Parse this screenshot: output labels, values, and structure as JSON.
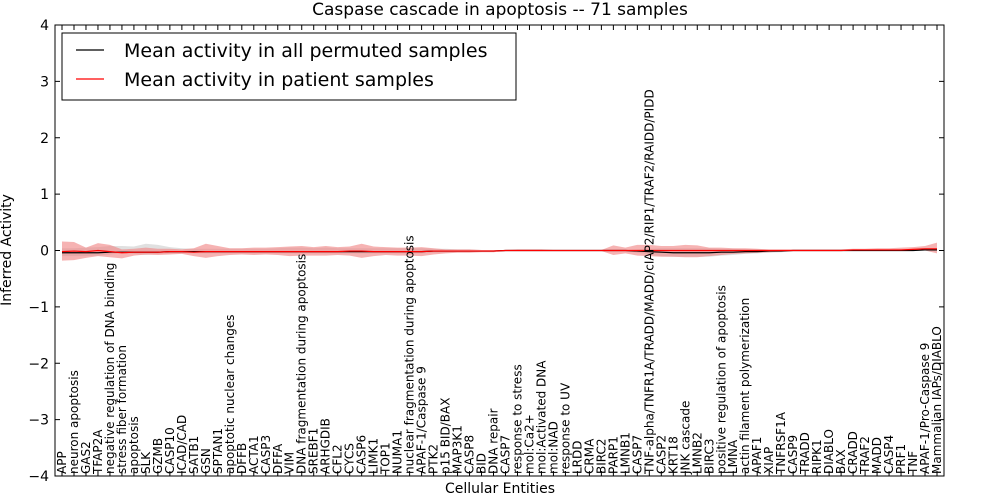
{
  "chart_data": {
    "type": "line",
    "title": "Caspase cascade in apoptosis -- 71 samples",
    "xlabel": "Cellular Entities",
    "ylabel": "Inferred Activity",
    "ylim": [
      -4,
      4
    ],
    "yticks": [
      -4,
      -3,
      -2,
      -1,
      0,
      1,
      2,
      3,
      4
    ],
    "ytick_labels": [
      "−4",
      "−3",
      "−2",
      "−1",
      "0",
      "1",
      "2",
      "3",
      "4"
    ],
    "grid": false,
    "legend_position": "top-left",
    "categories": [
      "APP",
      "neuron apoptosis",
      "GAS2",
      "TFAP2A",
      "negative regulation of DNA binding",
      "stress fiber formation",
      "apoptosis",
      "SLK",
      "GZMB",
      "CASP10",
      "ICAD/CAD",
      "SATB1",
      "GSN",
      "SPTAN1",
      "apoptotic nuclear changes",
      "DFFB",
      "ACTA1",
      "CASP3",
      "DFFA",
      "VIM",
      "DNA fragmentation during apoptosis",
      "SREBF1",
      "ARHGDIB",
      "CFL2",
      "CYCS",
      "CASP6",
      "LIMK1",
      "TOP1",
      "NUMA1",
      "nuclear fragmentation during apoptosis",
      "APAF-1/Caspase 9",
      "PTK2",
      "p15 BID/BAX",
      "MAP3K1",
      "CASP8",
      "BID",
      "DNA repair",
      "CASP7",
      "response to stress",
      "mol:Ca2+",
      "mol:Activated DNA",
      "mol:NAD",
      "response to UV",
      "LRDD",
      "CRMA",
      "BIRC2",
      "PARP1",
      "LMNB1",
      "CASP7",
      "TNF-alpha/TNFR1A/TRADD/MADD/cIAP2/RIP1/TRAF2/RAIDD/PIDD",
      "CASP2",
      "KRT18",
      "JNK cascade",
      "LMNB2",
      "BIRC3",
      "positive regulation of apoptosis",
      "LMNA",
      "actin filament polymerization",
      "APAF1",
      "XIAP",
      "TNFRSF1A",
      "CASP9",
      "TRADD",
      "RIPK1",
      "DIABLO",
      "BAX",
      "CRADD",
      "TRAF2",
      "MADD",
      "CASP4",
      "PRF1",
      "TNF",
      "APAF-1/Pro-Caspase 9",
      "Mammalian IAPs/DIABLO"
    ],
    "series": [
      {
        "name": "Mean activity in all permuted samples",
        "color": "#000000",
        "band_color": "#bbbbbb",
        "values": [
          -0.04,
          -0.04,
          -0.04,
          -0.04,
          -0.03,
          -0.03,
          -0.03,
          -0.03,
          -0.03,
          -0.02,
          -0.02,
          -0.02,
          -0.02,
          -0.02,
          -0.02,
          -0.02,
          -0.02,
          -0.02,
          -0.02,
          -0.02,
          -0.02,
          -0.02,
          -0.02,
          -0.02,
          -0.02,
          -0.02,
          -0.02,
          -0.02,
          -0.02,
          -0.02,
          -0.02,
          -0.01,
          -0.01,
          -0.01,
          -0.01,
          -0.01,
          -0.01,
          0.0,
          0.0,
          0.0,
          0.0,
          0.0,
          0.0,
          0.0,
          0.0,
          0.0,
          0.0,
          0.0,
          -0.01,
          -0.02,
          -0.03,
          -0.04,
          -0.04,
          -0.04,
          -0.04,
          -0.03,
          -0.03,
          -0.02,
          -0.02,
          -0.01,
          -0.01,
          0.0,
          0.0,
          0.0,
          0.0,
          0.0,
          0.0,
          0.0,
          0.0,
          0.0,
          0.0,
          0.0,
          0.01,
          0.01
        ],
        "lower": [
          -0.1,
          -0.1,
          -0.1,
          -0.09,
          -0.07,
          -0.05,
          -0.06,
          -0.08,
          -0.06,
          -0.05,
          -0.05,
          -0.05,
          -0.05,
          -0.05,
          -0.05,
          -0.05,
          -0.05,
          -0.05,
          -0.05,
          -0.05,
          -0.05,
          -0.05,
          -0.05,
          -0.05,
          -0.05,
          -0.05,
          -0.05,
          -0.05,
          -0.05,
          -0.05,
          -0.05,
          -0.04,
          -0.04,
          -0.03,
          -0.03,
          -0.02,
          -0.02,
          -0.01,
          -0.01,
          -0.01,
          -0.01,
          -0.01,
          -0.01,
          -0.01,
          -0.01,
          -0.01,
          -0.01,
          -0.01,
          -0.04,
          -0.07,
          -0.1,
          -0.11,
          -0.11,
          -0.11,
          -0.11,
          -0.09,
          -0.08,
          -0.06,
          -0.05,
          -0.04,
          -0.03,
          -0.01,
          -0.01,
          -0.01,
          -0.01,
          -0.01,
          -0.01,
          -0.01,
          -0.01,
          -0.01,
          -0.01,
          -0.01,
          0.0,
          -0.01
        ],
        "upper": [
          0.04,
          0.04,
          0.05,
          0.06,
          0.08,
          0.08,
          0.07,
          0.12,
          0.1,
          0.06,
          0.04,
          0.03,
          0.03,
          0.03,
          0.03,
          0.03,
          0.03,
          0.03,
          0.04,
          0.05,
          0.05,
          0.04,
          0.05,
          0.04,
          0.04,
          0.04,
          0.04,
          0.04,
          0.04,
          0.04,
          0.04,
          0.03,
          0.03,
          0.02,
          0.02,
          0.01,
          0.01,
          0.01,
          0.01,
          0.01,
          0.01,
          0.01,
          0.01,
          0.01,
          0.01,
          0.01,
          0.01,
          0.01,
          0.02,
          0.03,
          0.04,
          0.04,
          0.04,
          0.04,
          0.04,
          0.03,
          0.03,
          0.02,
          0.02,
          0.01,
          0.01,
          0.01,
          0.01,
          0.01,
          0.01,
          0.01,
          0.01,
          0.01,
          0.01,
          0.01,
          0.02,
          0.02,
          0.03,
          0.03
        ]
      },
      {
        "name": "Mean activity in patient samples",
        "color": "#ff0000",
        "band_color": "#f08080",
        "values": [
          -0.02,
          -0.01,
          -0.02,
          0.0,
          -0.02,
          -0.04,
          -0.03,
          -0.03,
          -0.03,
          -0.02,
          -0.02,
          -0.03,
          -0.02,
          -0.02,
          -0.02,
          -0.02,
          -0.02,
          -0.02,
          -0.02,
          -0.02,
          -0.02,
          -0.02,
          -0.02,
          -0.02,
          -0.01,
          -0.01,
          -0.02,
          -0.02,
          -0.02,
          -0.02,
          -0.02,
          -0.01,
          -0.01,
          -0.01,
          -0.01,
          -0.01,
          -0.01,
          0.0,
          0.0,
          0.0,
          0.0,
          0.0,
          0.0,
          0.0,
          0.0,
          0.0,
          0.0,
          0.0,
          0.0,
          0.0,
          0.0,
          0.0,
          0.0,
          0.0,
          0.0,
          0.0,
          0.0,
          0.0,
          0.0,
          0.0,
          0.0,
          0.0,
          0.0,
          0.0,
          0.0,
          0.0,
          0.01,
          0.01,
          0.01,
          0.01,
          0.01,
          0.02,
          0.03,
          0.03
        ],
        "lower": [
          -0.18,
          -0.17,
          -0.13,
          -0.1,
          -0.12,
          -0.14,
          -0.09,
          -0.07,
          -0.08,
          -0.07,
          -0.06,
          -0.1,
          -0.13,
          -0.1,
          -0.08,
          -0.07,
          -0.08,
          -0.07,
          -0.08,
          -0.1,
          -0.09,
          -0.09,
          -0.09,
          -0.08,
          -0.09,
          -0.13,
          -0.1,
          -0.08,
          -0.09,
          -0.09,
          -0.1,
          -0.07,
          -0.05,
          -0.04,
          -0.04,
          -0.03,
          -0.03,
          -0.01,
          0.0,
          0.0,
          0.0,
          -0.01,
          -0.01,
          -0.01,
          -0.01,
          -0.01,
          -0.08,
          -0.05,
          -0.09,
          -0.1,
          -0.11,
          -0.11,
          -0.12,
          -0.12,
          -0.1,
          -0.08,
          -0.06,
          -0.05,
          -0.04,
          -0.03,
          -0.02,
          -0.01,
          -0.01,
          -0.01,
          -0.01,
          -0.01,
          0.0,
          -0.01,
          0.0,
          0.0,
          0.0,
          0.0,
          0.0,
          -0.05
        ],
        "upper": [
          0.16,
          0.15,
          0.05,
          0.13,
          0.1,
          0.02,
          0.03,
          0.05,
          0.03,
          0.03,
          0.02,
          0.04,
          0.12,
          0.08,
          0.04,
          0.04,
          0.05,
          0.05,
          0.06,
          0.07,
          0.08,
          0.06,
          0.08,
          0.06,
          0.07,
          0.12,
          0.07,
          0.06,
          0.05,
          0.05,
          0.06,
          0.04,
          0.02,
          0.02,
          0.02,
          0.01,
          0.01,
          0.01,
          0.02,
          0.02,
          0.02,
          0.01,
          0.01,
          0.01,
          0.01,
          0.01,
          0.09,
          0.05,
          0.1,
          0.1,
          0.08,
          0.08,
          0.1,
          0.09,
          0.05,
          0.05,
          0.04,
          0.04,
          0.03,
          0.02,
          0.02,
          0.02,
          0.02,
          0.02,
          0.02,
          0.02,
          0.03,
          0.03,
          0.04,
          0.04,
          0.05,
          0.06,
          0.08,
          0.14
        ]
      }
    ]
  }
}
